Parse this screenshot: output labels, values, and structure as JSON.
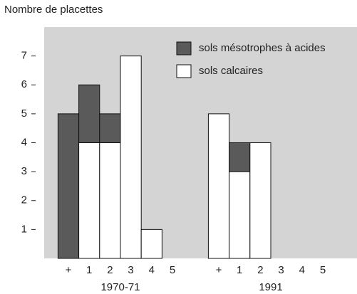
{
  "chart_data": {
    "type": "bar",
    "stacked": true,
    "ylabel": "Nombre de placettes",
    "categories": [
      "+",
      "1",
      "2",
      "3",
      "4",
      "5",
      "+",
      "1",
      "2",
      "3",
      "4",
      "5"
    ],
    "group_labels": [
      "1970-71",
      "1991"
    ],
    "series": [
      {
        "name": "sols calcaires",
        "color": "#ffffff",
        "values": [
          0,
          4,
          4,
          7,
          1,
          0,
          5,
          3,
          4,
          0,
          0,
          0
        ]
      },
      {
        "name": "sols mésotrophes à acides",
        "color": "#5a5a5a",
        "values": [
          5,
          2,
          1,
          0,
          0,
          0,
          0,
          1,
          0,
          0,
          0,
          0
        ]
      }
    ],
    "ylim": [
      0,
      8
    ],
    "yticks": [
      1,
      2,
      3,
      4,
      5,
      6,
      7
    ],
    "background": "#d4d4d4",
    "legend": "top-right"
  }
}
